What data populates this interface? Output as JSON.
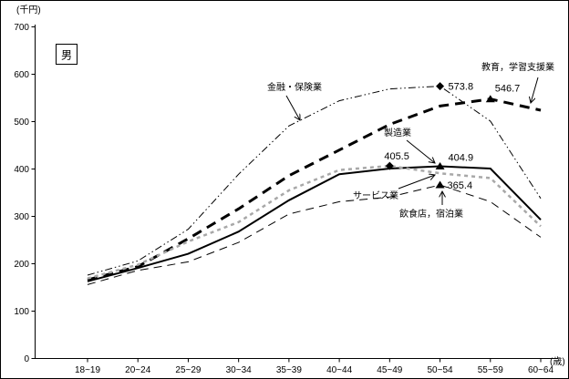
{
  "gender_label": "男",
  "chart_data": {
    "type": "line",
    "ylabel_unit": "(千円)",
    "xlabel_unit": "(歳)",
    "ylim": [
      0,
      700
    ],
    "y_ticks": [
      0,
      100,
      200,
      300,
      400,
      500,
      600,
      700
    ],
    "grid": "off",
    "legend": "inline-callouts-with-arrows",
    "categories": [
      "18~19",
      "20~24",
      "25~29",
      "30~34",
      "35~39",
      "40~44",
      "45~49",
      "50~54",
      "55~59",
      "60~64"
    ],
    "series": [
      {
        "name": "金融・保険業",
        "key": "finance-insurance",
        "style": "dash-dot-dot",
        "color": "#000000",
        "width": 1,
        "values": [
          175,
          205,
          272,
          388,
          490,
          543,
          568,
          573.8,
          500,
          337
        ]
      },
      {
        "name": "教育，学習支援業",
        "key": "education-learning-support",
        "style": "long-dash-thick",
        "color": "#000000",
        "width": 3,
        "values": [
          165,
          193,
          252,
          315,
          385,
          439,
          493,
          532,
          546.7,
          523
        ]
      },
      {
        "name": "製造業",
        "key": "manufacturing",
        "style": "solid",
        "color": "#000000",
        "width": 2,
        "values": [
          162,
          190,
          220,
          267,
          333,
          388,
          400,
          404.9,
          400,
          292
        ]
      },
      {
        "name": "サービス業",
        "key": "services",
        "style": "short-dash",
        "color": "#a8a8a8",
        "width": 2.5,
        "values": [
          168,
          197,
          246,
          287,
          354,
          397,
          405.5,
          390,
          380,
          278
        ]
      },
      {
        "name": "飲食店，宿泊業",
        "key": "restaurants-hotels",
        "style": "long-dash-thin",
        "color": "#000000",
        "width": 1,
        "values": [
          155,
          185,
          203,
          244,
          304,
          330,
          340,
          365.4,
          330,
          255
        ]
      }
    ],
    "annotations": [
      {
        "series": "金融・保険業",
        "category": "50~54",
        "value": 573.8,
        "label": "573.8",
        "marker": "diamond"
      },
      {
        "series": "教育，学習支援業",
        "category": "55~59",
        "value": 546.7,
        "label": "546.7",
        "marker": "triangle"
      },
      {
        "series": "サービス業",
        "category": "45~49",
        "value": 405.5,
        "label": "405.5",
        "marker": "diamond"
      },
      {
        "series": "製造業",
        "category": "50~54",
        "value": 404.9,
        "label": "404.9",
        "marker": "triangle"
      },
      {
        "series": "飲食店，宿泊業",
        "category": "50~54",
        "value": 365.4,
        "label": "365.4",
        "marker": "triangle"
      }
    ]
  }
}
